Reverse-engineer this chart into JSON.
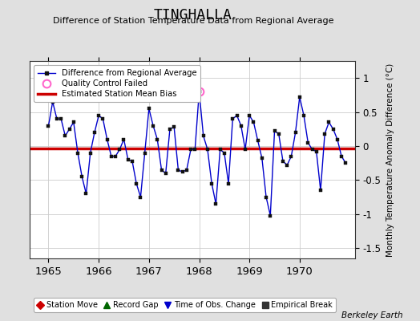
{
  "title": "TINGHALLA",
  "subtitle": "Difference of Station Temperature Data from Regional Average",
  "ylabel": "Monthly Temperature Anomaly Difference (°C)",
  "xlabel_ticks": [
    1965,
    1966,
    1967,
    1968,
    1969,
    1970
  ],
  "yticks": [
    -1.5,
    -1,
    -0.5,
    0,
    0.5,
    1
  ],
  "ylim": [
    -1.65,
    1.25
  ],
  "xlim": [
    1964.62,
    1971.1
  ],
  "bias_line_y": -0.03,
  "bias_color": "#cc0000",
  "line_color": "#0000cc",
  "background_color": "#e0e0e0",
  "plot_bg_color": "#ffffff",
  "qc_fail_index": 36,
  "times": [
    1965.0,
    1965.0833,
    1965.1667,
    1965.25,
    1965.3333,
    1965.4167,
    1965.5,
    1965.5833,
    1965.6667,
    1965.75,
    1965.8333,
    1965.9167,
    1966.0,
    1966.0833,
    1966.1667,
    1966.25,
    1966.3333,
    1966.4167,
    1966.5,
    1966.5833,
    1966.6667,
    1966.75,
    1966.8333,
    1966.9167,
    1967.0,
    1967.0833,
    1967.1667,
    1967.25,
    1967.3333,
    1967.4167,
    1967.5,
    1967.5833,
    1967.6667,
    1967.75,
    1967.8333,
    1967.9167,
    1968.0,
    1968.0833,
    1968.1667,
    1968.25,
    1968.3333,
    1968.4167,
    1968.5,
    1968.5833,
    1968.6667,
    1968.75,
    1968.8333,
    1968.9167,
    1969.0,
    1969.0833,
    1969.1667,
    1969.25,
    1969.3333,
    1969.4167,
    1969.5,
    1969.5833,
    1969.6667,
    1969.75,
    1969.8333,
    1969.9167,
    1970.0,
    1970.0833,
    1970.1667,
    1970.25,
    1970.3333,
    1970.4167,
    1970.5,
    1970.5833,
    1970.6667,
    1970.75,
    1970.8333,
    1970.9167
  ],
  "values": [
    0.3,
    0.65,
    0.4,
    0.4,
    0.15,
    0.25,
    0.35,
    -0.1,
    -0.45,
    -0.7,
    -0.1,
    0.2,
    0.45,
    0.4,
    0.1,
    -0.15,
    -0.15,
    -0.05,
    0.1,
    -0.2,
    -0.22,
    -0.55,
    -0.75,
    -0.1,
    0.55,
    0.3,
    0.1,
    -0.35,
    -0.4,
    0.25,
    0.28,
    -0.35,
    -0.38,
    -0.35,
    -0.05,
    -0.05,
    0.8,
    0.15,
    -0.05,
    -0.55,
    -0.85,
    -0.05,
    -0.1,
    -0.55,
    0.4,
    0.45,
    0.3,
    -0.05,
    0.45,
    0.35,
    0.08,
    -0.18,
    -0.75,
    -1.02,
    0.22,
    0.18,
    -0.22,
    -0.28,
    -0.15,
    0.2,
    0.72,
    0.45,
    0.05,
    -0.05,
    -0.08,
    -0.65,
    0.18,
    0.35,
    0.25,
    0.1,
    -0.15,
    -0.25
  ],
  "bottom_legend_items": [
    {
      "label": "Station Move",
      "color": "#cc0000",
      "marker": "D"
    },
    {
      "label": "Record Gap",
      "color": "#006600",
      "marker": "^"
    },
    {
      "label": "Time of Obs. Change",
      "color": "#0000cc",
      "marker": "v"
    },
    {
      "label": "Empirical Break",
      "color": "#333333",
      "marker": "s"
    }
  ]
}
